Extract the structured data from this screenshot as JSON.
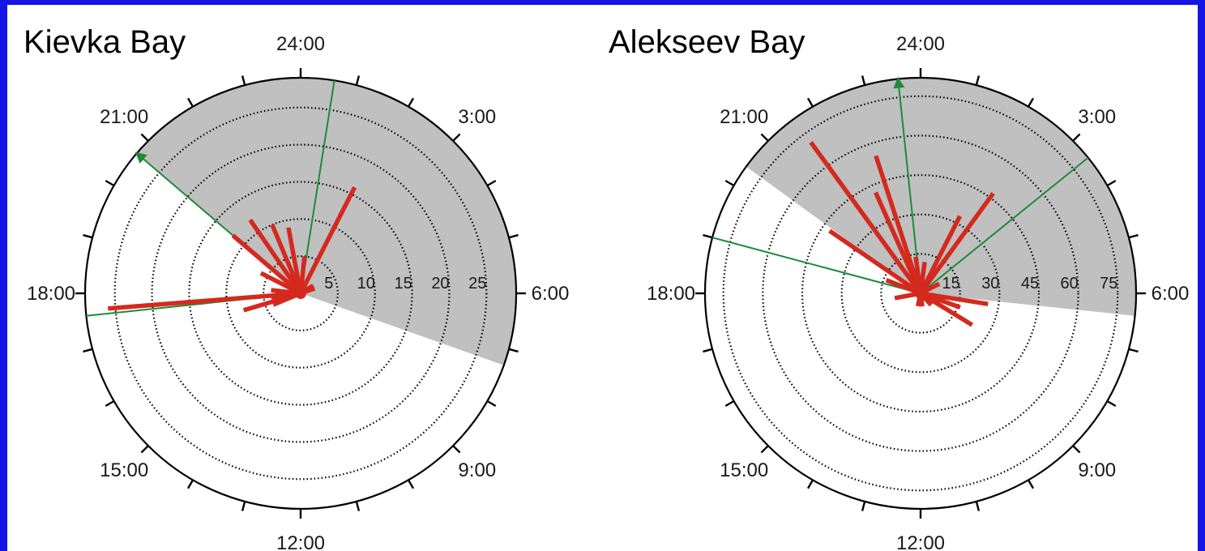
{
  "colors": {
    "frame": "#1515e6",
    "background": "#ffffff",
    "night_shading": "#c0c0c0",
    "bars": "#d42a1e",
    "mean_vector": "#1e8a3a",
    "outline": "#000000"
  },
  "chart_data": [
    {
      "type": "polar-bar",
      "title": "Kievka Bay",
      "radial_ticks": [
        "5",
        "10",
        "15",
        "20",
        "25"
      ],
      "radial_values": [
        5,
        10,
        15,
        20,
        25
      ],
      "radial_max": 29,
      "hour_labels": [
        {
          "hour": 24,
          "text": "24:00"
        },
        {
          "hour": 3,
          "text": "3:00"
        },
        {
          "hour": 6,
          "text": "6:00"
        },
        {
          "hour": 9,
          "text": "9:00"
        },
        {
          "hour": 12,
          "text": "12:00"
        },
        {
          "hour": 15,
          "text": "15:00"
        },
        {
          "hour": 18,
          "text": "18:00"
        },
        {
          "hour": 21,
          "text": "21:00"
        }
      ],
      "night_shading": {
        "start_hour": 20.7,
        "end_hour": 7.3
      },
      "bars": [
        {
          "hour": 17.7,
          "value": 26
        },
        {
          "hour": 17.5,
          "value": 4
        },
        {
          "hour": 16.9,
          "value": 8
        },
        {
          "hour": 16.5,
          "value": 4
        },
        {
          "hour": 18.4,
          "value": 4
        },
        {
          "hour": 19.8,
          "value": 6
        },
        {
          "hour": 20.7,
          "value": 12
        },
        {
          "hour": 21.7,
          "value": 12
        },
        {
          "hour": 22.5,
          "value": 10
        },
        {
          "hour": 23.3,
          "value": 9
        },
        {
          "hour": 0.4,
          "value": 5
        },
        {
          "hour": 1.8,
          "value": 16
        },
        {
          "hour": 3.9,
          "value": 2
        },
        {
          "hour": 4.7,
          "value": 2
        }
      ],
      "mean_vectors": [
        {
          "hour": 20.7,
          "length": 1.0,
          "arrow": true
        },
        {
          "hour": 0.6,
          "length": 1.0,
          "arrow": false
        },
        {
          "hour": 17.6,
          "length": 1.0,
          "arrow": false
        }
      ]
    },
    {
      "type": "polar-bar",
      "title": "Alekseev Bay",
      "radial_ticks": [
        "15",
        "30",
        "45",
        "60",
        "75"
      ],
      "radial_values": [
        15,
        30,
        45,
        60,
        75
      ],
      "radial_max": 82,
      "hour_labels": [
        {
          "hour": 24,
          "text": "24:00"
        },
        {
          "hour": 3,
          "text": "3:00"
        },
        {
          "hour": 6,
          "text": "6:00"
        },
        {
          "hour": 9,
          "text": "9:00"
        },
        {
          "hour": 12,
          "text": "12:00"
        },
        {
          "hour": 15,
          "text": "15:00"
        },
        {
          "hour": 18,
          "text": "18:00"
        },
        {
          "hour": 21,
          "text": "21:00"
        }
      ],
      "night_shading": {
        "start_hour": 20.4,
        "end_hour": 6.4
      },
      "bars": [
        {
          "hour": 21.6,
          "value": 71
        },
        {
          "hour": 22.4,
          "value": 42
        },
        {
          "hour": 22.8,
          "value": 55
        },
        {
          "hour": 20.3,
          "value": 42
        },
        {
          "hour": 19.4,
          "value": 14
        },
        {
          "hour": 23.5,
          "value": 14
        },
        {
          "hour": 0.5,
          "value": 12
        },
        {
          "hour": 1.8,
          "value": 33
        },
        {
          "hour": 2.4,
          "value": 47
        },
        {
          "hour": 4.2,
          "value": 8
        },
        {
          "hour": 6.6,
          "value": 26
        },
        {
          "hour": 7.3,
          "value": 16
        },
        {
          "hour": 8.1,
          "value": 23
        },
        {
          "hour": 9.2,
          "value": 6
        },
        {
          "hour": 11.5,
          "value": 5
        },
        {
          "hour": 12.8,
          "value": 5
        },
        {
          "hour": 17.3,
          "value": 10
        }
      ],
      "mean_vectors": [
        {
          "hour": 23.6,
          "length": 1.0,
          "arrow": true
        },
        {
          "hour": 19.0,
          "length": 1.0,
          "arrow": false
        },
        {
          "hour": 3.4,
          "length": 1.0,
          "arrow": false
        }
      ]
    }
  ]
}
